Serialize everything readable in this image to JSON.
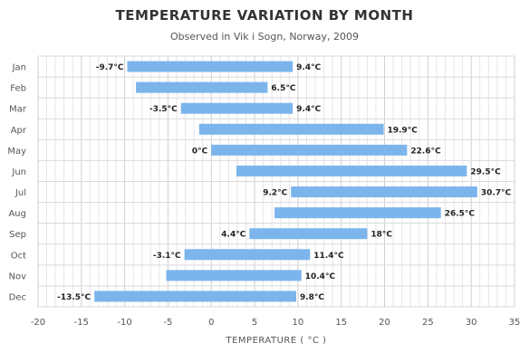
{
  "chart_data": {
    "type": "bar",
    "orientation": "horizontal",
    "range_bars": true,
    "title": "TEMPERATURE VARIATION BY MONTH",
    "subtitle": "Observed in Vik i Sogn, Norway, 2009",
    "xlabel": "TEMPERATURE ( °C )",
    "ylabel": "",
    "xlim": [
      -20,
      35
    ],
    "xticks": [
      -20,
      -15,
      -10,
      -5,
      0,
      5,
      10,
      15,
      20,
      25,
      30,
      35
    ],
    "grid": true,
    "bar_color": "#7cb5ec",
    "categories": [
      "Jan",
      "Feb",
      "Mar",
      "Apr",
      "May",
      "Jun",
      "Jul",
      "Aug",
      "Sep",
      "Oct",
      "Nov",
      "Dec"
    ],
    "ranges": [
      {
        "low": -9.7,
        "high": 9.4,
        "low_label": "-9.7°C",
        "high_label": "9.4°C"
      },
      {
        "low": -8.7,
        "high": 6.5,
        "low_label": "",
        "high_label": "6.5°C"
      },
      {
        "low": -3.5,
        "high": 9.4,
        "low_label": "-3.5°C",
        "high_label": "9.4°C"
      },
      {
        "low": -1.4,
        "high": 19.9,
        "low_label": "",
        "high_label": "19.9°C"
      },
      {
        "low": 0,
        "high": 22.6,
        "low_label": "0°C",
        "high_label": "22.6°C"
      },
      {
        "low": 2.9,
        "high": 29.5,
        "low_label": "",
        "high_label": "29.5°C"
      },
      {
        "low": 9.2,
        "high": 30.7,
        "low_label": "9.2°C",
        "high_label": "30.7°C"
      },
      {
        "low": 7.3,
        "high": 26.5,
        "low_label": "",
        "high_label": "26.5°C"
      },
      {
        "low": 4.4,
        "high": 18,
        "low_label": "4.4°C",
        "high_label": "18°C"
      },
      {
        "low": -3.1,
        "high": 11.4,
        "low_label": "-3.1°C",
        "high_label": "11.4°C"
      },
      {
        "low": -5.2,
        "high": 10.4,
        "low_label": "",
        "high_label": "10.4°C"
      },
      {
        "low": -13.5,
        "high": 9.8,
        "low_label": "-13.5°C",
        "high_label": "9.8°C"
      }
    ]
  }
}
